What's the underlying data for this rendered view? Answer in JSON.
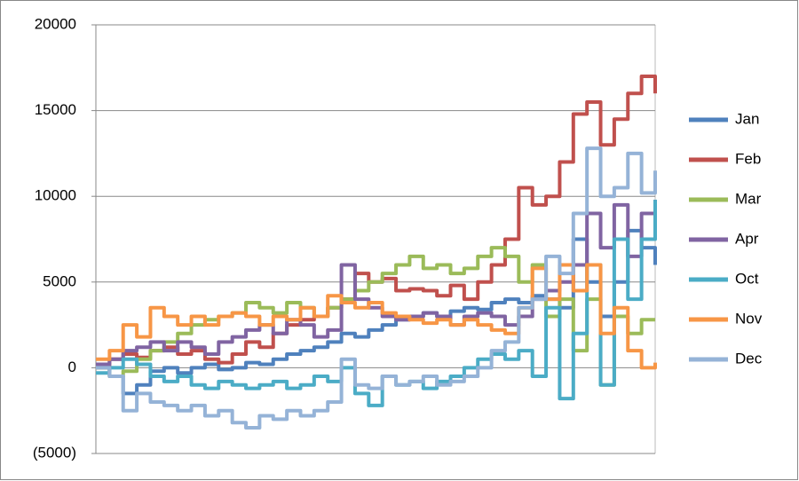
{
  "chart_data": {
    "type": "line",
    "step": true,
    "grid": true,
    "legend": "right",
    "ylim": [
      -5000,
      20000
    ],
    "yticks": [
      {
        "value": -5000,
        "label": "(5000)"
      },
      0,
      5000,
      10000,
      15000,
      20000
    ],
    "negative_tick_color": "#ff0000",
    "series": [
      {
        "name": "Jan",
        "color": "#4F81BD",
        "values": [
          0,
          -500,
          -1500,
          -1000,
          -200,
          0,
          -300,
          0,
          200,
          -100,
          0,
          300,
          200,
          500,
          800,
          1000,
          1200,
          1500,
          2000,
          1800,
          2200,
          2500,
          2800,
          3000,
          3200,
          3000,
          3300,
          3500,
          3400,
          3800,
          4000,
          3800,
          4200,
          4000,
          3500,
          7500,
          5000,
          3000,
          5000,
          8000,
          7000,
          6000
        ]
      },
      {
        "name": "Feb",
        "color": "#C0504D",
        "values": [
          0,
          500,
          800,
          600,
          1000,
          1200,
          800,
          1000,
          500,
          300,
          800,
          1500,
          1200,
          2000,
          2500,
          2800,
          3000,
          3500,
          4000,
          5500,
          5000,
          5200,
          4500,
          4600,
          4500,
          4200,
          4800,
          4000,
          5000,
          6000,
          7500,
          10500,
          9500,
          10000,
          12000,
          14800,
          15500,
          13000,
          14500,
          16000,
          17000,
          16000
        ]
      },
      {
        "name": "Mar",
        "color": "#9BBB59",
        "values": [
          0,
          -500,
          -200,
          500,
          1000,
          1500,
          2000,
          2500,
          2800,
          3000,
          3200,
          3800,
          3500,
          3200,
          3800,
          3500,
          3000,
          3500,
          4000,
          4500,
          5000,
          5500,
          6000,
          6500,
          5800,
          6000,
          5500,
          5800,
          6500,
          7000,
          6500,
          5000,
          6000,
          3000,
          4000,
          1000,
          4000,
          -1000,
          3000,
          2000,
          2800,
          2800
        ]
      },
      {
        "name": "Apr",
        "color": "#8064A2",
        "values": [
          200,
          500,
          1000,
          1200,
          1500,
          1000,
          1500,
          1200,
          800,
          1500,
          1800,
          2200,
          2500,
          2000,
          2800,
          2500,
          1800,
          2200,
          6000,
          4000,
          3500,
          3000,
          2800,
          3000,
          3200,
          3000,
          2500,
          3000,
          3200,
          3000,
          2500,
          3000,
          4000,
          4500,
          5000,
          6000,
          9000,
          7000,
          9500,
          6500,
          9000,
          9800
        ]
      },
      {
        "name": "Oct",
        "color": "#4BACC6",
        "values": [
          -300,
          0,
          500,
          200,
          -500,
          -800,
          -500,
          -1000,
          -1200,
          -800,
          -1000,
          -1200,
          -1000,
          -800,
          -1200,
          -1000,
          -500,
          -800,
          0,
          -1500,
          -2200,
          -500,
          -1000,
          -800,
          -1200,
          -800,
          -500,
          0,
          500,
          800,
          500,
          1000,
          -500,
          3500,
          -1800,
          2000,
          6000,
          -1000,
          7500,
          4000,
          7500,
          9800
        ]
      },
      {
        "name": "Nov",
        "color": "#F79646",
        "values": [
          500,
          1000,
          2500,
          1800,
          3500,
          3000,
          2500,
          3000,
          2500,
          3000,
          3200,
          3000,
          2500,
          3000,
          2800,
          3500,
          3000,
          4200,
          3800,
          3500,
          3800,
          3200,
          3000,
          2800,
          2600,
          2800,
          2500,
          2800,
          2500,
          2200,
          2000,
          3500,
          5800,
          4000,
          6000,
          4500,
          6000,
          2000,
          3500,
          1000,
          0,
          300
        ]
      },
      {
        "name": "Dec",
        "color": "#95B3D7",
        "values": [
          0,
          -500,
          -2500,
          -1500,
          -2000,
          -2200,
          -2500,
          -2200,
          -2800,
          -2500,
          -3200,
          -3500,
          -2800,
          -3000,
          -2500,
          -2800,
          -2500,
          -2000,
          500,
          -1000,
          -1200,
          -500,
          -1000,
          -800,
          -500,
          -1000,
          -800,
          -500,
          0,
          1000,
          1500,
          3500,
          4000,
          6500,
          5500,
          9000,
          12800,
          10000,
          10500,
          12500,
          10200,
          11500
        ]
      }
    ]
  }
}
